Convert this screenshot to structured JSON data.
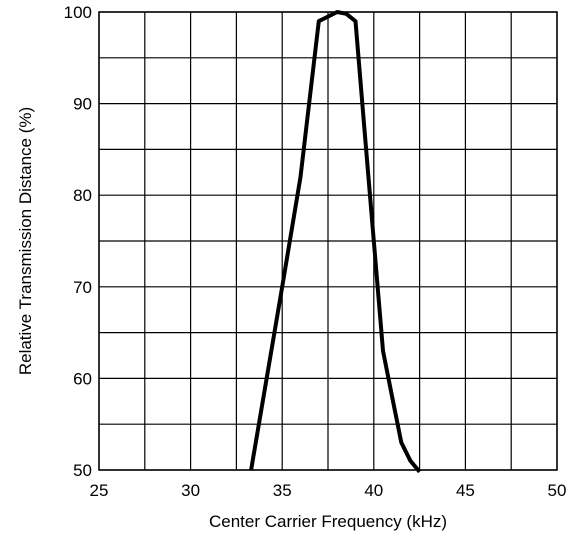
{
  "chart_data": {
    "type": "line",
    "title": "",
    "xlabel": "Center Carrier Frequency  (kHz)",
    "ylabel": "Relative Transmission Distance (%)",
    "xlim": [
      25,
      50
    ],
    "ylim": [
      50,
      100
    ],
    "grid": true,
    "x_grid_step": 2.5,
    "y_grid_step": 5,
    "x_ticks": [
      25,
      30,
      35,
      40,
      45,
      50
    ],
    "y_ticks": [
      50,
      60,
      70,
      80,
      90,
      100
    ],
    "series": [
      {
        "x": [
          33.3,
          35,
          36,
          37,
          38,
          38.5,
          39,
          39.5,
          40,
          40.5,
          41,
          41.5,
          42,
          42.5
        ],
        "y": [
          50,
          70,
          82,
          99,
          100,
          99.8,
          99,
          87,
          75,
          63,
          58,
          53,
          51,
          49.8
        ]
      }
    ]
  }
}
